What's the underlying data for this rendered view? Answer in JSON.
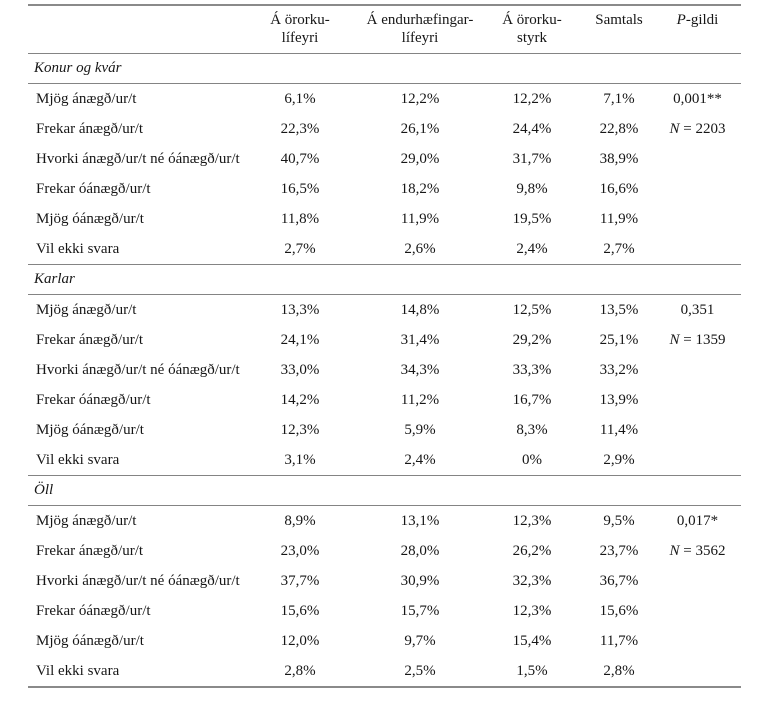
{
  "colors": {
    "background": "#ffffff",
    "text": "#161616",
    "rule": "#848484"
  },
  "table": {
    "header": {
      "col_disability_pension": {
        "line1": "Á örorku-",
        "line2": "lífeyri"
      },
      "col_rehab_pension": {
        "line1": "Á endurhæfingar-",
        "line2": "lífeyri"
      },
      "col_disability_allowance": {
        "line1": "Á örorku-",
        "line2": "styrk"
      },
      "col_total": "Samtals",
      "col_pvalue_italic": "P",
      "col_pvalue_rest": "-gildi"
    },
    "sections": [
      {
        "title": "Konur og kvár",
        "p_value": "0,001**",
        "n_italic": "N",
        "n_rest": " = 2203",
        "rows": [
          {
            "label": "Mjög ánægð/ur/t",
            "values": [
              "6,1%",
              "12,2%",
              "12,2%",
              "7,1%"
            ]
          },
          {
            "label": "Frekar ánægð/ur/t",
            "values": [
              "22,3%",
              "26,1%",
              "24,4%",
              "22,8%"
            ]
          },
          {
            "label": "Hvorki ánægð/ur/t né óánægð/ur/t",
            "values": [
              "40,7%",
              "29,0%",
              "31,7%",
              "38,9%"
            ]
          },
          {
            "label": "Frekar óánægð/ur/t",
            "values": [
              "16,5%",
              "18,2%",
              "9,8%",
              "16,6%"
            ]
          },
          {
            "label": "Mjög óánægð/ur/t",
            "values": [
              "11,8%",
              "11,9%",
              "19,5%",
              "11,9%"
            ]
          },
          {
            "label": "Vil ekki svara",
            "values": [
              "2,7%",
              "2,6%",
              "2,4%",
              "2,7%"
            ]
          }
        ]
      },
      {
        "title": "Karlar",
        "p_value": "0,351",
        "n_italic": "N",
        "n_rest": " = 1359",
        "rows": [
          {
            "label": "Mjög ánægð/ur/t",
            "values": [
              "13,3%",
              "14,8%",
              "12,5%",
              "13,5%"
            ]
          },
          {
            "label": "Frekar ánægð/ur/t",
            "values": [
              "24,1%",
              "31,4%",
              "29,2%",
              "25,1%"
            ]
          },
          {
            "label": "Hvorki ánægð/ur/t né óánægð/ur/t",
            "values": [
              "33,0%",
              "34,3%",
              "33,3%",
              "33,2%"
            ]
          },
          {
            "label": "Frekar óánægð/ur/t",
            "values": [
              "14,2%",
              "11,2%",
              "16,7%",
              "13,9%"
            ]
          },
          {
            "label": "Mjög óánægð/ur/t",
            "values": [
              "12,3%",
              "5,9%",
              "8,3%",
              "11,4%"
            ]
          },
          {
            "label": "Vil ekki svara",
            "values": [
              "3,1%",
              "2,4%",
              "0%",
              "2,9%"
            ]
          }
        ]
      },
      {
        "title": "Öll",
        "p_value": "0,017*",
        "n_italic": "N",
        "n_rest": " = 3562",
        "rows": [
          {
            "label": "Mjög ánægð/ur/t",
            "values": [
              "8,9%",
              "13,1%",
              "12,3%",
              "9,5%"
            ]
          },
          {
            "label": "Frekar ánægð/ur/t",
            "values": [
              "23,0%",
              "28,0%",
              "26,2%",
              "23,7%"
            ]
          },
          {
            "label": "Hvorki ánægð/ur/t né óánægð/ur/t",
            "values": [
              "37,7%",
              "30,9%",
              "32,3%",
              "36,7%"
            ]
          },
          {
            "label": "Frekar óánægð/ur/t",
            "values": [
              "15,6%",
              "15,7%",
              "12,3%",
              "15,6%"
            ]
          },
          {
            "label": "Mjög óánægð/ur/t",
            "values": [
              "12,0%",
              "9,7%",
              "15,4%",
              "11,7%"
            ]
          },
          {
            "label": "Vil ekki svara",
            "values": [
              "2,8%",
              "2,5%",
              "1,5%",
              "2,8%"
            ]
          }
        ]
      }
    ]
  }
}
